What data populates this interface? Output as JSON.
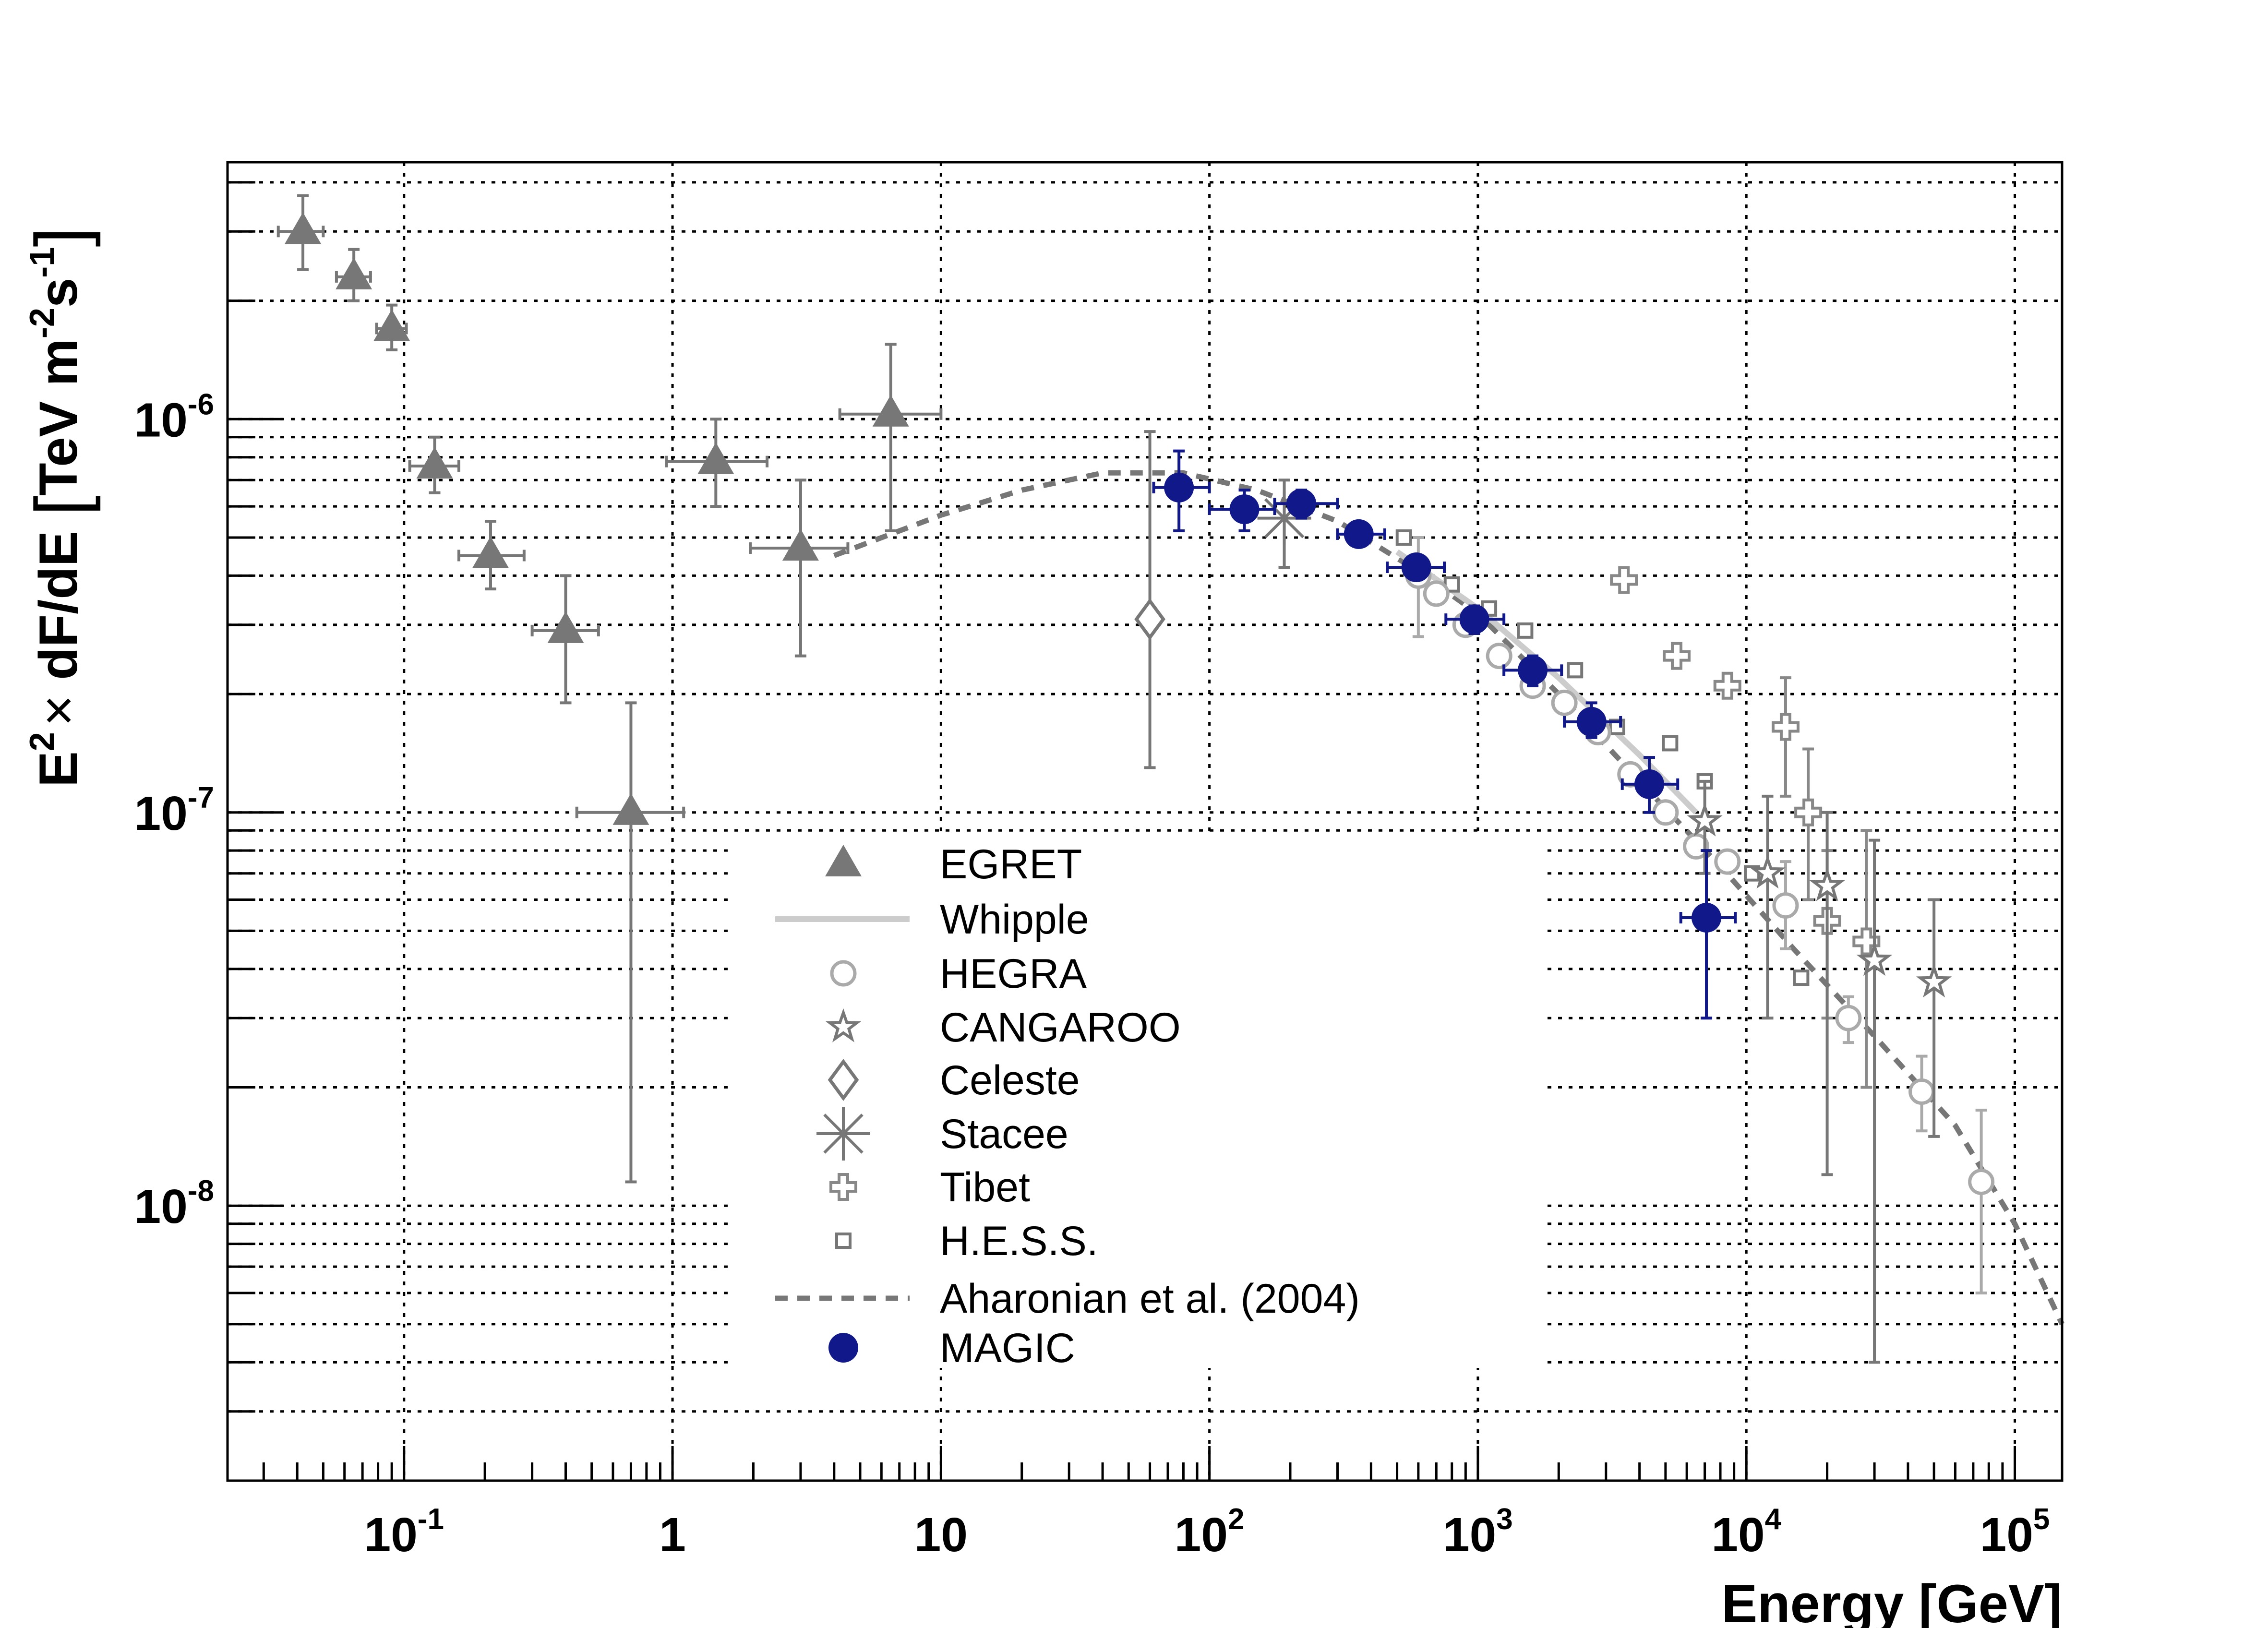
{
  "chart_data": {
    "type": "scatter",
    "xlabel": "Energy [GeV]",
    "ylabel_parts": {
      "e": "E",
      "e_sup": "2",
      "times": "×",
      "mid": " dF/dE ",
      "lb": "[",
      "tev": "TeV m",
      "m_sup": "-2",
      "s": "s",
      "s_sup": "-1",
      "rb": "]"
    },
    "x_scale": "log",
    "y_scale": "log",
    "xlim": [
      0.022,
      150000
    ],
    "ylim": [
      2e-09,
      4.5e-06
    ],
    "x_ticks": [
      {
        "value": 0.1,
        "base": "10",
        "sup": "-1"
      },
      {
        "value": 1,
        "base": "1",
        "sup": ""
      },
      {
        "value": 10,
        "base": "10",
        "sup": ""
      },
      {
        "value": 100,
        "base": "10",
        "sup": "2"
      },
      {
        "value": 1000,
        "base": "10",
        "sup": "3"
      },
      {
        "value": 10000,
        "base": "10",
        "sup": "4"
      },
      {
        "value": 100000,
        "base": "10",
        "sup": "5"
      }
    ],
    "y_ticks": [
      {
        "value": 1e-06,
        "base": "10",
        "sup": "-6"
      },
      {
        "value": 1e-07,
        "base": "10",
        "sup": "-7"
      },
      {
        "value": 1e-08,
        "base": "10",
        "sup": "-8"
      }
    ],
    "grid": true,
    "legend": {
      "placement": "lower-center",
      "entries": [
        {
          "label": "EGRET",
          "marker": "triangle",
          "color": "#777777"
        },
        {
          "label": "Whipple",
          "marker": "solid-line",
          "color": "#cccccc"
        },
        {
          "label": "HEGRA",
          "marker": "open-circle",
          "color": "#aaaaaa"
        },
        {
          "label": "CANGAROO",
          "marker": "open-star",
          "color": "#777777"
        },
        {
          "label": "Celeste",
          "marker": "open-diamond",
          "color": "#777777"
        },
        {
          "label": "Stacee",
          "marker": "asterisk",
          "color": "#777777"
        },
        {
          "label": "Tibet",
          "marker": "open-cross",
          "color": "#888888"
        },
        {
          "label": "H.E.S.S.",
          "marker": "open-square",
          "color": "#777777"
        },
        {
          "label": "Aharonian et al. (2004)",
          "marker": "dashed-line",
          "color": "#777777"
        },
        {
          "label": "MAGIC",
          "marker": "filled-circle",
          "color": "#10188a"
        }
      ]
    },
    "series": [
      {
        "name": "EGRET",
        "marker": "triangle",
        "color": "#777777",
        "points": [
          {
            "x": 0.042,
            "y": 3e-06,
            "xlo": 0.034,
            "xhi": 0.05,
            "ylo": 2.4e-06,
            "yhi": 3.7e-06
          },
          {
            "x": 0.065,
            "y": 2.3e-06,
            "xlo": 0.056,
            "xhi": 0.075,
            "ylo": 2e-06,
            "yhi": 2.7e-06
          },
          {
            "x": 0.09,
            "y": 1.7e-06,
            "xlo": 0.079,
            "xhi": 0.102,
            "ylo": 1.5e-06,
            "yhi": 1.95e-06
          },
          {
            "x": 0.13,
            "y": 7.6e-07,
            "xlo": 0.105,
            "xhi": 0.16,
            "ylo": 6.5e-07,
            "yhi": 9e-07
          },
          {
            "x": 0.21,
            "y": 4.5e-07,
            "xlo": 0.16,
            "xhi": 0.28,
            "ylo": 3.7e-07,
            "yhi": 5.5e-07
          },
          {
            "x": 0.4,
            "y": 2.9e-07,
            "xlo": 0.3,
            "xhi": 0.53,
            "ylo": 1.9e-07,
            "yhi": 4e-07
          },
          {
            "x": 0.7,
            "y": 1e-07,
            "xlo": 0.44,
            "xhi": 1.1,
            "ylo": 1.15e-08,
            "yhi": 1.9e-07
          },
          {
            "x": 1.45,
            "y": 7.8e-07,
            "xlo": 0.95,
            "xhi": 2.25,
            "ylo": 6e-07,
            "yhi": 1e-06
          },
          {
            "x": 3.0,
            "y": 4.7e-07,
            "xlo": 1.95,
            "xhi": 4.5,
            "ylo": 2.5e-07,
            "yhi": 7e-07
          },
          {
            "x": 6.5,
            "y": 1.03e-06,
            "xlo": 4.2,
            "xhi": 10.0,
            "ylo": 5.2e-07,
            "yhi": 1.55e-06
          }
        ]
      },
      {
        "name": "Whipple",
        "marker": "solid-line",
        "color": "#cccccc",
        "points": [
          {
            "x": 500,
            "y": 4.6e-07
          },
          {
            "x": 1000,
            "y": 3.3e-07
          },
          {
            "x": 2000,
            "y": 2.2e-07
          },
          {
            "x": 4000,
            "y": 1.4e-07
          },
          {
            "x": 6500,
            "y": 1e-07
          }
        ]
      },
      {
        "name": "HEGRA",
        "marker": "open-circle",
        "color": "#aaaaaa",
        "points": [
          {
            "x": 600,
            "y": 4e-07,
            "ylo": 2.8e-07,
            "yhi": 5e-07
          },
          {
            "x": 700,
            "y": 3.6e-07
          },
          {
            "x": 900,
            "y": 3e-07
          },
          {
            "x": 1200,
            "y": 2.5e-07
          },
          {
            "x": 1600,
            "y": 2.1e-07
          },
          {
            "x": 2100,
            "y": 1.9e-07
          },
          {
            "x": 2800,
            "y": 1.6e-07
          },
          {
            "x": 3700,
            "y": 1.25e-07
          },
          {
            "x": 5000,
            "y": 1e-07
          },
          {
            "x": 6500,
            "y": 8.2e-08
          },
          {
            "x": 8500,
            "y": 7.5e-08
          },
          {
            "x": 14000,
            "y": 5.8e-08,
            "ylo": 4.5e-08,
            "yhi": 7.5e-08
          },
          {
            "x": 24000,
            "y": 3e-08,
            "ylo": 2.6e-08,
            "yhi": 3.4e-08
          },
          {
            "x": 45000,
            "y": 1.95e-08,
            "ylo": 1.55e-08,
            "yhi": 2.4e-08
          },
          {
            "x": 75000,
            "y": 1.15e-08,
            "ylo": 6e-09,
            "yhi": 1.75e-08
          }
        ]
      },
      {
        "name": "CANGAROO",
        "marker": "open-star",
        "color": "#777777",
        "points": [
          {
            "x": 7000,
            "y": 9.5e-08,
            "ylo": 7e-08,
            "yhi": 1.2e-07
          },
          {
            "x": 12000,
            "y": 7e-08,
            "ylo": 3e-08,
            "yhi": 1.1e-07
          },
          {
            "x": 20000,
            "y": 6.5e-08,
            "ylo": 1.2e-08,
            "yhi": 1e-07
          },
          {
            "x": 30000,
            "y": 4.2e-08,
            "ylo": 4e-09,
            "yhi": 8.5e-08
          },
          {
            "x": 50000,
            "y": 3.7e-08,
            "ylo": 1.5e-08,
            "yhi": 6e-08
          }
        ]
      },
      {
        "name": "Celeste",
        "marker": "open-diamond",
        "color": "#777777",
        "points": [
          {
            "x": 60,
            "y": 3.1e-07,
            "ylo": 1.3e-07,
            "yhi": 9.3e-07
          }
        ]
      },
      {
        "name": "Stacee",
        "marker": "asterisk",
        "color": "#777777",
        "points": [
          {
            "x": 190,
            "y": 5.6e-07,
            "ylo": 4.2e-07,
            "yhi": 7e-07
          }
        ]
      },
      {
        "name": "Tibet",
        "marker": "open-cross",
        "color": "#888888",
        "points": [
          {
            "x": 3500,
            "y": 3.9e-07
          },
          {
            "x": 5500,
            "y": 2.5e-07
          },
          {
            "x": 8500,
            "y": 2.1e-07
          },
          {
            "x": 14000,
            "y": 1.65e-07,
            "ylo": 1.1e-07,
            "yhi": 2.2e-07
          },
          {
            "x": 17000,
            "y": 1e-07,
            "ylo": 6e-08,
            "yhi": 1.45e-07
          },
          {
            "x": 20000,
            "y": 5.3e-08,
            "ylo": 3e-08,
            "yhi": 8e-08
          },
          {
            "x": 28000,
            "y": 4.7e-08,
            "ylo": 2e-08,
            "yhi": 9e-08
          }
        ]
      },
      {
        "name": "H.E.S.S.",
        "marker": "open-square",
        "color": "#777777",
        "points": [
          {
            "x": 530,
            "y": 5e-07
          },
          {
            "x": 800,
            "y": 3.8e-07
          },
          {
            "x": 1100,
            "y": 3.3e-07
          },
          {
            "x": 1500,
            "y": 2.9e-07
          },
          {
            "x": 2300,
            "y": 2.3e-07
          },
          {
            "x": 3300,
            "y": 1.65e-07
          },
          {
            "x": 5200,
            "y": 1.5e-07
          },
          {
            "x": 7000,
            "y": 1.2e-07
          },
          {
            "x": 10500,
            "y": 7e-08
          },
          {
            "x": 16000,
            "y": 3.8e-08
          }
        ]
      },
      {
        "name": "Aharonian et al. (2004)",
        "marker": "dashed-line",
        "color": "#777777",
        "points": [
          {
            "x": 4,
            "y": 4.5e-07
          },
          {
            "x": 10,
            "y": 5.7e-07
          },
          {
            "x": 20,
            "y": 6.6e-07
          },
          {
            "x": 40,
            "y": 7.3e-07
          },
          {
            "x": 80,
            "y": 7.3e-07
          },
          {
            "x": 150,
            "y": 6.6e-07
          },
          {
            "x": 300,
            "y": 5.5e-07
          },
          {
            "x": 600,
            "y": 4.1e-07
          },
          {
            "x": 1000,
            "y": 3.2e-07
          },
          {
            "x": 2000,
            "y": 2e-07
          },
          {
            "x": 4000,
            "y": 1.2e-07
          },
          {
            "x": 8000,
            "y": 7.3e-08
          },
          {
            "x": 15000,
            "y": 4.5e-08
          },
          {
            "x": 30000,
            "y": 2.7e-08
          },
          {
            "x": 60000,
            "y": 1.6e-08
          },
          {
            "x": 100000,
            "y": 9e-09
          },
          {
            "x": 150000,
            "y": 5e-09
          }
        ]
      },
      {
        "name": "MAGIC",
        "marker": "filled-circle",
        "color": "#10188a",
        "points": [
          {
            "x": 77,
            "y": 6.7e-07,
            "xlo": 62,
            "xhi": 100,
            "ylo": 5.2e-07,
            "yhi": 8.3e-07
          },
          {
            "x": 135,
            "y": 5.9e-07,
            "xlo": 100,
            "xhi": 175,
            "ylo": 5.2e-07,
            "yhi": 6.6e-07
          },
          {
            "x": 220,
            "y": 6.1e-07,
            "xlo": 175,
            "xhi": 300,
            "ylo": 5.6e-07,
            "yhi": 6.6e-07
          },
          {
            "x": 360,
            "y": 5.1e-07,
            "xlo": 300,
            "xhi": 450,
            "ylo": 4.8e-07,
            "yhi": 5.4e-07
          },
          {
            "x": 590,
            "y": 4.2e-07,
            "xlo": 460,
            "xhi": 750,
            "ylo": 3.9e-07,
            "yhi": 4.5e-07
          },
          {
            "x": 970,
            "y": 3.1e-07,
            "xlo": 760,
            "xhi": 1250,
            "ylo": 2.85e-07,
            "yhi": 3.35e-07
          },
          {
            "x": 1600,
            "y": 2.3e-07,
            "xlo": 1250,
            "xhi": 2050,
            "ylo": 2.1e-07,
            "yhi": 2.5e-07
          },
          {
            "x": 2650,
            "y": 1.7e-07,
            "xlo": 2100,
            "xhi": 3400,
            "ylo": 1.55e-07,
            "yhi": 1.9e-07
          },
          {
            "x": 4350,
            "y": 1.18e-07,
            "xlo": 3450,
            "xhi": 5550,
            "ylo": 1e-07,
            "yhi": 1.38e-07
          },
          {
            "x": 7100,
            "y": 5.4e-08,
            "xlo": 5700,
            "xhi": 9100,
            "ylo": 3e-08,
            "yhi": 8e-08
          }
        ]
      }
    ]
  }
}
